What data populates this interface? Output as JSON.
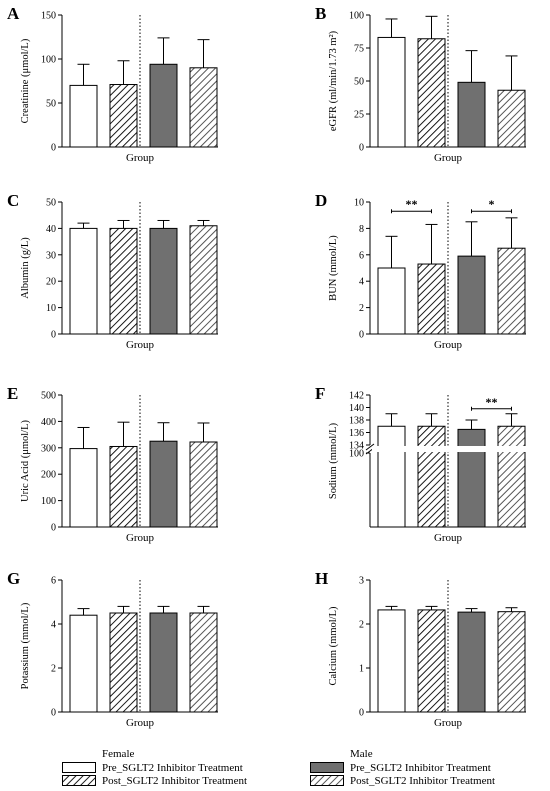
{
  "legend": {
    "female_title": "Female",
    "male_title": "Male",
    "pre_label": "Pre_SGLT2 Inhibitor Treatment",
    "post_label": "Post_SGLT2 Inhibitor Treatment"
  },
  "colors": {
    "female_fill": "#ffffff",
    "male_fill": "#707070",
    "outline": "#000000"
  },
  "chart_data": [
    {
      "type": "bar",
      "panel_letter": "A",
      "ylabel": "Creatinine (μmol/L)",
      "xlabel": "Group",
      "ylim": [
        0,
        150
      ],
      "yticks": [
        0,
        50,
        100,
        150
      ],
      "categories": [
        "Female Pre",
        "Female Post",
        "Male Pre",
        "Male Post"
      ],
      "values": [
        70,
        71,
        94,
        90
      ],
      "errors": [
        24,
        27,
        30,
        32
      ],
      "significance": []
    },
    {
      "type": "bar",
      "panel_letter": "B",
      "ylabel": "eGFR (ml/min/1.73 m²)",
      "xlabel": "Group",
      "ylim": [
        0,
        100
      ],
      "yticks": [
        0,
        25,
        50,
        75,
        100
      ],
      "categories": [
        "Female Pre",
        "Female Post",
        "Male Pre",
        "Male Post"
      ],
      "values": [
        83,
        82,
        49,
        43
      ],
      "errors": [
        14,
        17,
        24,
        26
      ],
      "significance": []
    },
    {
      "type": "bar",
      "panel_letter": "C",
      "ylabel": "Albumin (g/L)",
      "xlabel": "Group",
      "ylim": [
        0,
        50
      ],
      "yticks": [
        0,
        10,
        20,
        30,
        40,
        50
      ],
      "categories": [
        "Female Pre",
        "Female Post",
        "Male Pre",
        "Male Post"
      ],
      "values": [
        40,
        40,
        40,
        41
      ],
      "errors": [
        2,
        3,
        3,
        2
      ],
      "significance": []
    },
    {
      "type": "bar",
      "panel_letter": "D",
      "ylabel": "BUN (mmol/L)",
      "xlabel": "Group",
      "ylim": [
        0,
        10
      ],
      "yticks": [
        0,
        2,
        4,
        6,
        8,
        10
      ],
      "categories": [
        "Female Pre",
        "Female Post",
        "Male Pre",
        "Male Post"
      ],
      "values": [
        5.0,
        5.3,
        5.9,
        6.5
      ],
      "errors": [
        2.4,
        3.0,
        2.6,
        2.3
      ],
      "significance": [
        {
          "from": 0,
          "to": 1,
          "label": "**",
          "y": 9.3
        },
        {
          "from": 2,
          "to": 3,
          "label": "*",
          "y": 9.3
        }
      ]
    },
    {
      "type": "bar",
      "panel_letter": "E",
      "ylabel": "Uric Acid (μmol/L)",
      "xlabel": "Group",
      "ylim": [
        0,
        500
      ],
      "yticks": [
        0,
        100,
        200,
        300,
        400,
        500
      ],
      "categories": [
        "Female Pre",
        "Female Post",
        "Male Pre",
        "Male Post"
      ],
      "values": [
        297,
        305,
        325,
        322
      ],
      "errors": [
        80,
        92,
        70,
        72
      ],
      "significance": []
    },
    {
      "type": "bar",
      "panel_letter": "F",
      "ylabel": "Sodium (mmol/L)",
      "xlabel": "Group",
      "broken_axis": true,
      "ylim_lower": [
        0,
        100
      ],
      "ylim_upper": [
        134,
        142
      ],
      "yticks_lower": [
        100
      ],
      "yticks_upper": [
        134,
        136,
        138,
        140,
        142
      ],
      "categories": [
        "Female Pre",
        "Female Post",
        "Male Pre",
        "Male Post"
      ],
      "values": [
        137.0,
        137.0,
        136.5,
        137.0
      ],
      "errors": [
        2.0,
        2.0,
        1.5,
        2.0
      ],
      "significance": [
        {
          "from": 2,
          "to": 3,
          "label": "**",
          "y": 139.8
        }
      ]
    },
    {
      "type": "bar",
      "panel_letter": "G",
      "ylabel": "Potassium (mmol/L)",
      "xlabel": "Group",
      "ylim": [
        0,
        6
      ],
      "yticks": [
        0,
        2,
        4,
        6
      ],
      "categories": [
        "Female Pre",
        "Female Post",
        "Male Pre",
        "Male Post"
      ],
      "values": [
        4.4,
        4.5,
        4.5,
        4.5
      ],
      "errors": [
        0.3,
        0.3,
        0.3,
        0.3
      ],
      "significance": []
    },
    {
      "type": "bar",
      "panel_letter": "H",
      "ylabel": "Calcium (mmol/L)",
      "xlabel": "Group",
      "ylim": [
        0,
        3
      ],
      "yticks": [
        0,
        1,
        2,
        3
      ],
      "categories": [
        "Female Pre",
        "Female Post",
        "Male Pre",
        "Male Post"
      ],
      "values": [
        2.32,
        2.32,
        2.27,
        2.28
      ],
      "errors": [
        0.08,
        0.08,
        0.08,
        0.09
      ],
      "significance": []
    }
  ]
}
